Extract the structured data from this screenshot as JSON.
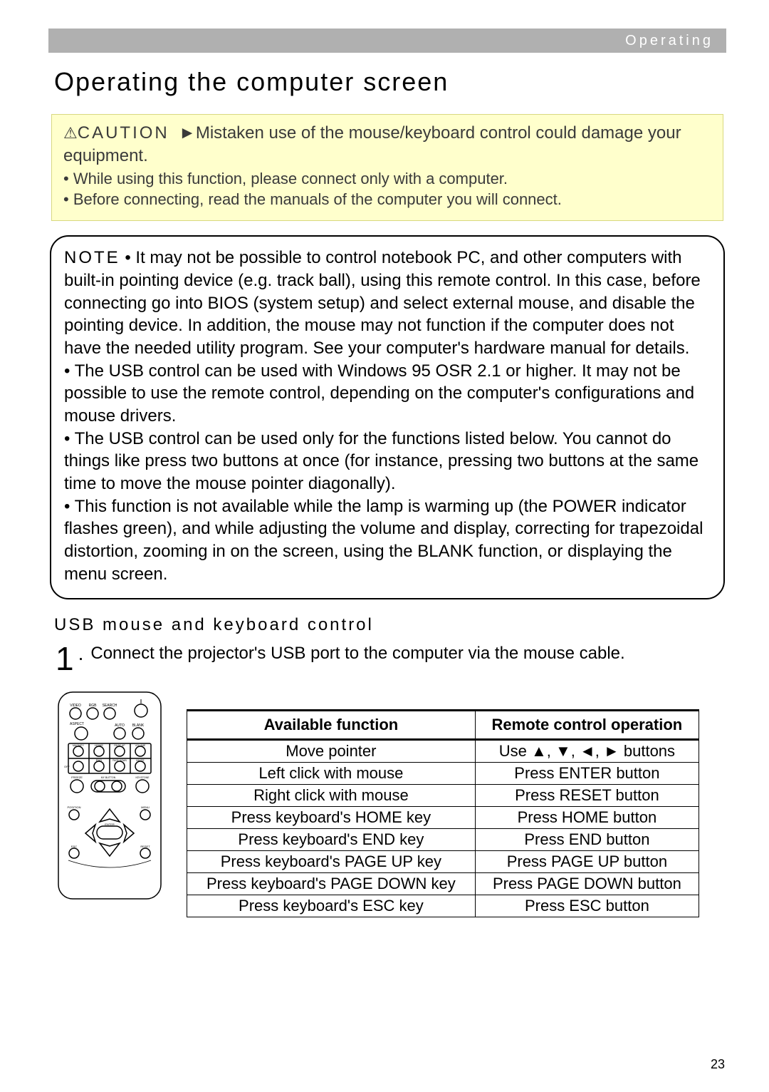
{
  "header": {
    "section": "Operating"
  },
  "title": "Operating the computer screen",
  "caution": {
    "label": "CAUTION",
    "arrow": "►",
    "main": "Mistaken use of the mouse/keyboard control could damage your equipment.",
    "bullets": [
      "• While using this function, please connect only with a computer.",
      "• Before connecting, read the manuals of the computer you will connect."
    ]
  },
  "note": {
    "label": "NOTE",
    "paragraphs": [
      "• It may not be possible to control notebook PC, and other computers with built-in pointing device (e.g. track ball), using this remote control. In this case, before connecting go into BIOS (system setup) and select external mouse, and disable the pointing device. In addition, the mouse may not function if the computer does not have the needed utility program. See your computer's hardware manual for details.",
      "• The USB control can be used with Windows 95 OSR 2.1 or higher. It may not be possible to use the remote control, depending on the computer's configurations and mouse drivers.",
      "• The USB control can be used only for the functions listed below. You cannot do things like press two buttons at once (for instance, pressing two buttons at the same time to move the mouse pointer diagonally).",
      "• This function is not available while the lamp is warming up (the POWER indicator flashes green), and while adjusting the volume and display, correcting for trapezoidal distortion, zooming in on the screen, using the BLANK function, or displaying the menu screen."
    ]
  },
  "usb_heading": "USB mouse and keyboard control",
  "step": {
    "num": "1",
    "dot": ".",
    "text": "Connect the projector's USB port to the computer via the mouse cable."
  },
  "table": {
    "headers": [
      "Available function",
      "Remote control operation"
    ],
    "rows": [
      [
        "Move pointer",
        "Use ▲, ▼, ◄, ► buttons"
      ],
      [
        "Left click with mouse",
        "Press ENTER button"
      ],
      [
        "Right click with mouse",
        "Press RESET button"
      ],
      [
        "Press keyboard's HOME key",
        "Press HOME button"
      ],
      [
        "Press keyboard's END key",
        "Press END button"
      ],
      [
        "Press keyboard's PAGE UP key",
        "Press PAGE UP button"
      ],
      [
        "Press keyboard's PAGE DOWN key",
        "Press PAGE DOWN button"
      ],
      [
        "Press keyboard's ESC key",
        "Press ESC button"
      ]
    ]
  },
  "remote": {
    "top_labels": [
      "VIDEO",
      "RGB",
      "SEARCH"
    ],
    "row2_labels": [
      "ASPECT",
      "AUTO",
      "BLANK"
    ],
    "grid_labels": [
      [
        "MAGNIFY",
        "HOME",
        "PAGE UP",
        "VOLUME"
      ],
      [
        "OFF",
        "END",
        "PAGE DOWN",
        "MUTE"
      ]
    ],
    "row4_labels": [
      "FREEZE",
      "MY BUTTON",
      "KEYSTONE"
    ],
    "nav_labels": {
      "position": "POSITION",
      "menu": "MENU",
      "enter": "ENTER",
      "esc": "ESC",
      "reset": "RESET"
    },
    "body_stroke": "#000000",
    "body_fill": "#ffffff",
    "label_color": "#000000",
    "label_fontsize": 5
  },
  "page_number": "23",
  "colors": {
    "header_bg": "#b0b0b0",
    "header_text": "#ffffff",
    "caution_bg": "#ffffcc",
    "caution_border": "#d8d880",
    "text": "#000000"
  }
}
